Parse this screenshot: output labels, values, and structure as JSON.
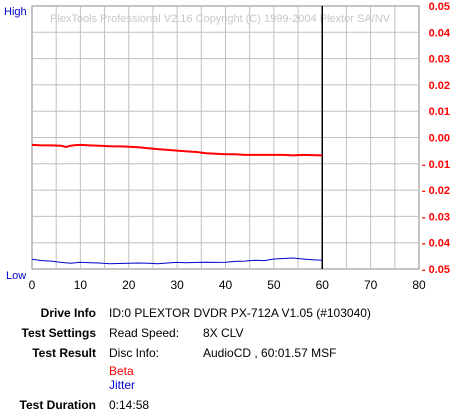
{
  "chart_data": {
    "type": "line",
    "watermark": "PlexTools Professional V2.16 Copyright (C) 1999-2004 Plextor SA/NV",
    "left_axis": {
      "top_label": "High",
      "bottom_label": "Low"
    },
    "x_ticks": [
      "0",
      "10",
      "20",
      "30",
      "40",
      "50",
      "60",
      "70",
      "80"
    ],
    "xlim": [
      0,
      80
    ],
    "y_ticks": [
      "0.05",
      "0.04",
      "0.03",
      "0.02",
      "0.01",
      "0.00",
      "- 0.01",
      "- 0.02",
      "- 0.03",
      "- 0.04",
      "- 0.05"
    ],
    "ylim": [
      -0.05,
      0.05
    ],
    "grid": true,
    "end_marker_x": 60,
    "series": [
      {
        "name": "Beta",
        "color": "#ff0000",
        "x": [
          0,
          2,
          4,
          6,
          7,
          8,
          9,
          10,
          12,
          14,
          16,
          18,
          20,
          22,
          24,
          26,
          28,
          30,
          32,
          34,
          36,
          38,
          40,
          42,
          44,
          46,
          48,
          50,
          52,
          54,
          56,
          58,
          60
        ],
        "y": [
          -0.0028,
          -0.003,
          -0.003,
          -0.0031,
          -0.0036,
          -0.0031,
          -0.0029,
          -0.0028,
          -0.003,
          -0.0031,
          -0.0033,
          -0.0034,
          -0.0035,
          -0.0037,
          -0.0041,
          -0.0044,
          -0.0047,
          -0.005,
          -0.0053,
          -0.0055,
          -0.006,
          -0.0062,
          -0.0064,
          -0.0064,
          -0.0066,
          -0.0066,
          -0.0066,
          -0.0066,
          -0.0066,
          -0.0068,
          -0.0066,
          -0.0067,
          -0.0068
        ]
      },
      {
        "name": "Jitter",
        "color": "#0000cc",
        "x": [
          0,
          2,
          4,
          6,
          8,
          10,
          12,
          14,
          16,
          18,
          20,
          22,
          24,
          26,
          28,
          30,
          32,
          34,
          36,
          38,
          40,
          42,
          44,
          46,
          48,
          50,
          52,
          54,
          56,
          58,
          60
        ],
        "y": [
          -0.0463,
          -0.0468,
          -0.047,
          -0.0475,
          -0.0478,
          -0.0474,
          -0.0476,
          -0.0477,
          -0.048,
          -0.0479,
          -0.0478,
          -0.0477,
          -0.0478,
          -0.048,
          -0.0477,
          -0.0475,
          -0.0476,
          -0.0475,
          -0.0474,
          -0.0475,
          -0.0474,
          -0.0471,
          -0.047,
          -0.0467,
          -0.0468,
          -0.0462,
          -0.046,
          -0.0458,
          -0.0462,
          -0.0465,
          -0.0467
        ]
      }
    ]
  },
  "info": {
    "drive_info_label": "Drive Info",
    "drive_info_value": "ID:0 PLEXTOR DVDR PX-712A V1.05 (#103040)",
    "test_settings_label": "Test Settings",
    "read_speed_label": "Read Speed:",
    "read_speed_value": "8X CLV",
    "test_result_label": "Test Result",
    "disc_info_label": "Disc Info:",
    "disc_info_value": "AudioCD , 60:01.57 MSF",
    "legend_beta": "Beta",
    "legend_jitter": "Jitter",
    "test_duration_label": "Test Duration",
    "test_duration_value": "0:14:58"
  }
}
